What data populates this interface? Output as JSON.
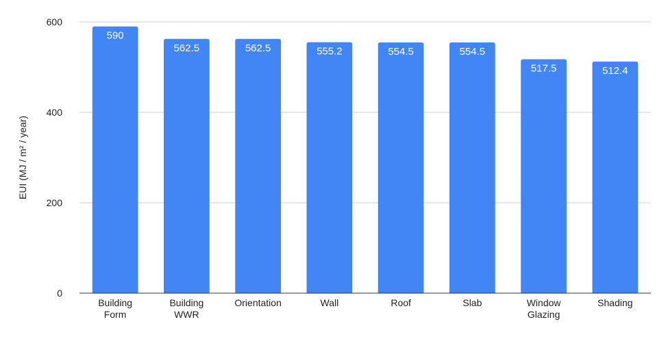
{
  "chart_data": {
    "type": "bar",
    "title": "",
    "xlabel": "",
    "ylabel": "EUI (MJ / m² / year)",
    "ylim": [
      0,
      600
    ],
    "yticks": [
      0,
      200,
      400,
      600
    ],
    "grid": true,
    "legend": "none",
    "categories": [
      [
        "Building",
        "Form"
      ],
      [
        "Building",
        "WWR"
      ],
      [
        "Orientation"
      ],
      [
        "Wall"
      ],
      [
        "Roof"
      ],
      [
        "Slab"
      ],
      [
        "Window",
        "Glazing"
      ],
      [
        "Shading"
      ]
    ],
    "values": [
      590,
      562.5,
      562.5,
      555.2,
      554.5,
      554.5,
      517.5,
      512.4
    ],
    "data_labels": [
      "590",
      "562.5",
      "562.5",
      "555.2",
      "554.5",
      "554.5",
      "517.5",
      "512.4"
    ],
    "bar_color": "#4285f4",
    "grid_color": "#cccccc"
  }
}
